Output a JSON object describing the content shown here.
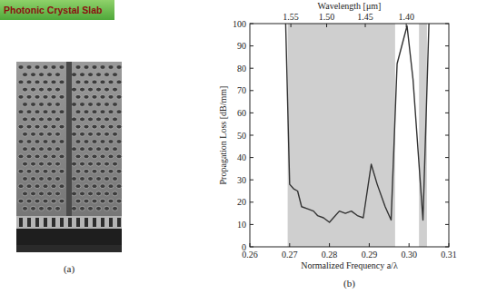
{
  "header": {
    "title": "Photonic Crystal Slab"
  },
  "figure_a": {
    "label": "(a)"
  },
  "chart_data": {
    "type": "line",
    "label": "(b)",
    "x_label": "Normalized Frequency a/λ",
    "y_label": "Propagation Loss [dB/mm]",
    "x2_label": "Wavelength [μm]",
    "x": [
      0.269,
      0.27,
      0.271,
      0.272,
      0.273,
      0.2745,
      0.276,
      0.277,
      0.2785,
      0.28,
      0.281,
      0.2825,
      0.284,
      0.2855,
      0.287,
      0.2885,
      0.2905,
      0.292,
      0.294,
      0.2955,
      0.297,
      0.2995,
      0.301,
      0.3035,
      0.305
    ],
    "values": [
      100,
      28,
      26,
      25,
      18,
      17,
      16,
      14,
      13,
      11,
      13,
      16,
      15,
      16,
      14,
      13,
      37,
      28,
      18,
      12,
      82,
      99,
      75,
      12,
      100
    ],
    "color": "#333333",
    "bands": [
      [
        0.2695,
        0.2965
      ],
      [
        0.3025,
        0.3045
      ]
    ],
    "xlim": [
      0.26,
      0.31
    ],
    "xticks": [
      0.26,
      0.27,
      0.28,
      0.29,
      {
        "value": 0.3,
        "label": "0.30"
      },
      0.31
    ],
    "ylim": [
      0,
      100
    ],
    "yticks": [
      0,
      10,
      20,
      30,
      40,
      50,
      60,
      70,
      80,
      90,
      100
    ],
    "x2ticks": [
      {
        "value": 0.2703,
        "label": "1.55"
      },
      {
        "value": 0.2793,
        "label": "1.50"
      },
      {
        "value": 0.289,
        "label": "1.45"
      },
      {
        "value": 0.2993,
        "label": "1.40"
      }
    ],
    "grid": false
  }
}
